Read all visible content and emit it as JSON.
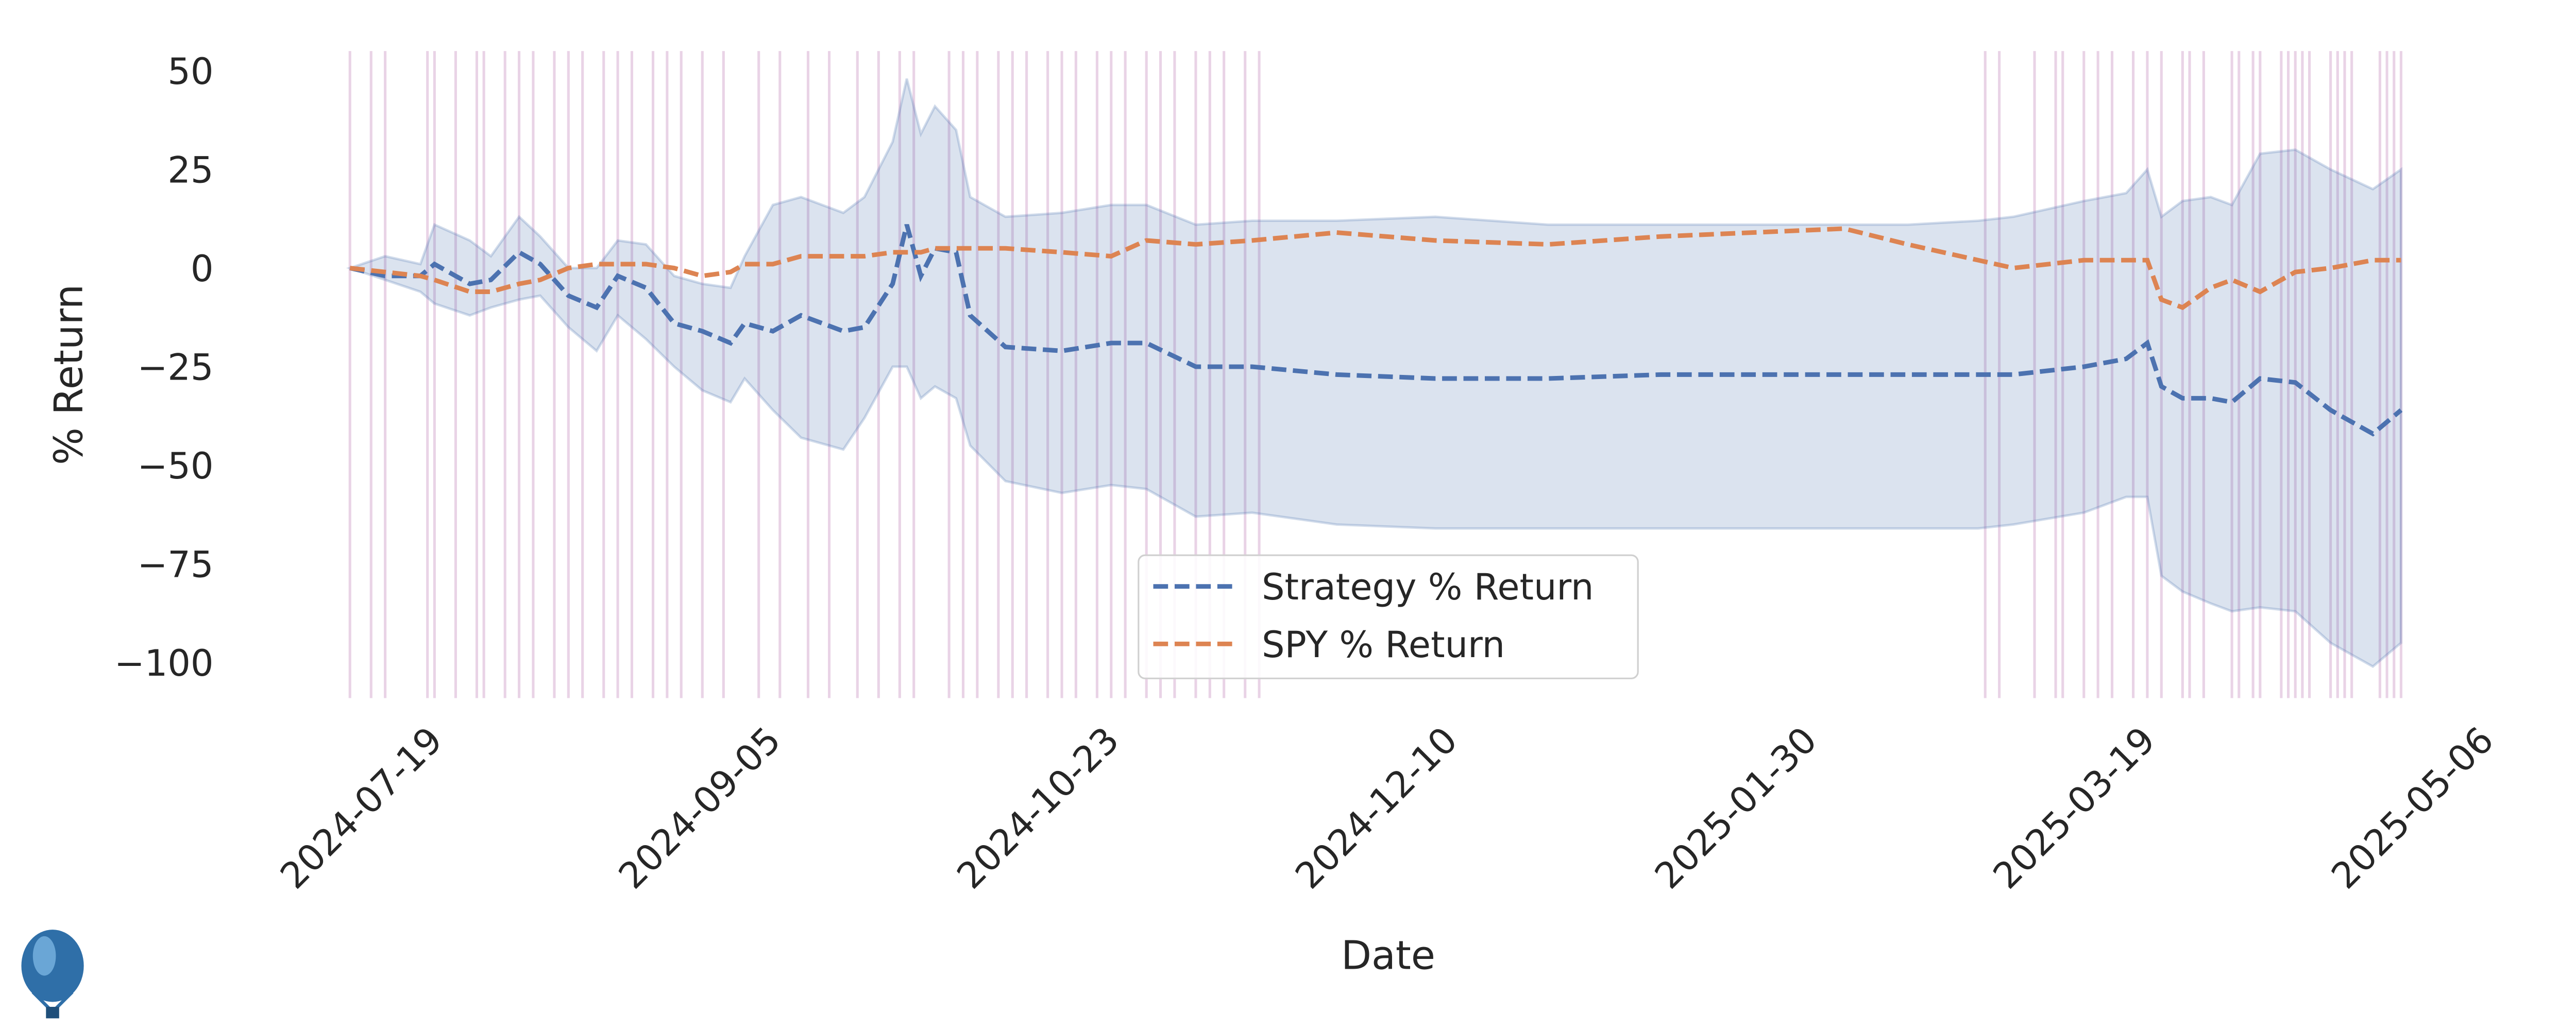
{
  "chart_data": {
    "type": "line",
    "x_label": "Date",
    "y_label": "% Return",
    "x": [
      "2024-07-07",
      "2024-07-12",
      "2024-07-17",
      "2024-07-19",
      "2024-07-24",
      "2024-07-27",
      "2024-07-31",
      "2024-08-03",
      "2024-08-07",
      "2024-08-11",
      "2024-08-14",
      "2024-08-18",
      "2024-08-22",
      "2024-08-26",
      "2024-08-30",
      "2024-09-01",
      "2024-09-05",
      "2024-09-09",
      "2024-09-15",
      "2024-09-18",
      "2024-09-22",
      "2024-09-24",
      "2024-09-26",
      "2024-09-28",
      "2024-10-01",
      "2024-10-03",
      "2024-10-08",
      "2024-10-16",
      "2024-10-23",
      "2024-10-28",
      "2024-11-04",
      "2024-11-12",
      "2024-11-24",
      "2024-12-08",
      "2024-12-24",
      "2025-01-09",
      "2025-02-04",
      "2025-02-13",
      "2025-02-23",
      "2025-02-28",
      "2025-03-10",
      "2025-03-16",
      "2025-03-19",
      "2025-03-21",
      "2025-03-24",
      "2025-03-28",
      "2025-03-31",
      "2025-04-04",
      "2025-04-09",
      "2025-04-14",
      "2025-04-20",
      "2025-04-24"
    ],
    "series": [
      {
        "name": "Strategy % Return",
        "color": "#4c72b0",
        "values": [
          0,
          -2,
          -2,
          1,
          -4,
          -3,
          4,
          1,
          -7,
          -10,
          -2,
          -5,
          -14,
          -16,
          -19,
          -14,
          -16,
          -12,
          -16,
          -15,
          -4,
          11,
          -2,
          5,
          4,
          -12,
          -20,
          -21,
          -19,
          -19,
          -25,
          -25,
          -27,
          -28,
          -28,
          -27,
          -27,
          -27,
          -27,
          -27,
          -25,
          -23,
          -19,
          -30,
          -33,
          -33,
          -34,
          -28,
          -29,
          -36,
          -42,
          -36
        ]
      },
      {
        "name": "SPY % Return",
        "color": "#dd8452",
        "values": [
          0,
          -1,
          -2,
          -3,
          -6,
          -6,
          -4,
          -3,
          0,
          1,
          1,
          1,
          0,
          -2,
          -1,
          1,
          1,
          3,
          3,
          3,
          4,
          4,
          4,
          5,
          5,
          5,
          5,
          4,
          3,
          7,
          6,
          7,
          9,
          7,
          6,
          8,
          10,
          6,
          2,
          0,
          2,
          2,
          2,
          -8,
          -10,
          -5,
          -3,
          -6,
          -1,
          0,
          2,
          2
        ]
      }
    ],
    "band": {
      "color": "#4c72b0",
      "upper": [
        0,
        3,
        1,
        11,
        7,
        3,
        13,
        8,
        0,
        0,
        7,
        6,
        -2,
        -4,
        -5,
        3,
        16,
        18,
        14,
        18,
        32,
        48,
        34,
        41,
        35,
        18,
        13,
        14,
        16,
        16,
        11,
        12,
        12,
        13,
        11,
        11,
        11,
        11,
        12,
        13,
        17,
        19,
        25,
        13,
        17,
        18,
        16,
        29,
        30,
        25,
        20,
        25
      ],
      "lower": [
        0,
        -3,
        -6,
        -9,
        -12,
        -10,
        -8,
        -7,
        -15,
        -21,
        -12,
        -18,
        -25,
        -31,
        -34,
        -28,
        -36,
        -43,
        -46,
        -38,
        -25,
        -25,
        -33,
        -30,
        -33,
        -45,
        -54,
        -57,
        -55,
        -56,
        -63,
        -62,
        -65,
        -66,
        -66,
        -66,
        -66,
        -66,
        -66,
        -65,
        -62,
        -58,
        -58,
        -78,
        -82,
        -85,
        -87,
        -86,
        -87,
        -95,
        -101,
        -95
      ]
    },
    "vlines": {
      "color": "#e9d3e6",
      "x": [
        "2024-07-07",
        "2024-07-10",
        "2024-07-12",
        "2024-07-18",
        "2024-07-19",
        "2024-07-22",
        "2024-07-25",
        "2024-07-26",
        "2024-07-29",
        "2024-07-31",
        "2024-08-02",
        "2024-08-05",
        "2024-08-07",
        "2024-08-09",
        "2024-08-12",
        "2024-08-14",
        "2024-08-16",
        "2024-08-19",
        "2024-08-21",
        "2024-08-23",
        "2024-08-26",
        "2024-08-29",
        "2024-09-03",
        "2024-09-06",
        "2024-09-10",
        "2024-09-13",
        "2024-09-17",
        "2024-09-20",
        "2024-09-23",
        "2024-09-25",
        "2024-09-30",
        "2024-10-02",
        "2024-10-04",
        "2024-10-07",
        "2024-10-09",
        "2024-10-11",
        "2024-10-14",
        "2024-10-16",
        "2024-10-18",
        "2024-10-21",
        "2024-10-23",
        "2024-10-25",
        "2024-10-28",
        "2024-10-30",
        "2024-11-01",
        "2024-11-04",
        "2024-11-06",
        "2024-11-08",
        "2024-11-11",
        "2024-11-13",
        "2025-02-24",
        "2025-02-26",
        "2025-03-03",
        "2025-03-06",
        "2025-03-07",
        "2025-03-10",
        "2025-03-12",
        "2025-03-14",
        "2025-03-17",
        "2025-03-19",
        "2025-03-21",
        "2025-03-24",
        "2025-03-25",
        "2025-03-27",
        "2025-03-31",
        "2025-04-01",
        "2025-04-03",
        "2025-04-04",
        "2025-04-07",
        "2025-04-08",
        "2025-04-09",
        "2025-04-10",
        "2025-04-11",
        "2025-04-14",
        "2025-04-15",
        "2025-04-16",
        "2025-04-17",
        "2025-04-21",
        "2025-04-22",
        "2025-04-23",
        "2025-04-24"
      ]
    },
    "xlim": [
      "2024-07-07",
      "2025-05-06"
    ],
    "xticks": [
      "2024-07-19",
      "2024-09-05",
      "2024-10-23",
      "2024-12-10",
      "2025-01-30",
      "2025-03-19",
      "2025-05-06"
    ],
    "ylim": [
      -109,
      55
    ],
    "yticks": [
      50,
      25,
      0,
      {
        "value": -25,
        "label": "−25"
      },
      {
        "value": -50,
        "label": "−50"
      },
      {
        "value": -75,
        "label": "−75"
      },
      {
        "value": -100,
        "label": "−100"
      }
    ],
    "legend": "lower center",
    "grid": false
  }
}
